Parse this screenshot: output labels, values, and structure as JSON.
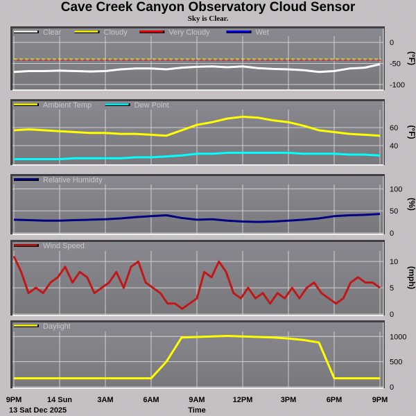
{
  "title": "Cave Creek Canyon Observatory Cloud Sensor",
  "subtitle": "Sky is Clear.",
  "x_axis": {
    "label": "Time",
    "date_label": "13 Sat Dec 2025",
    "ticks": [
      "9PM",
      "14 Sun",
      "3AM",
      "6AM",
      "9AM",
      "12PM",
      "3PM",
      "6PM",
      "9PM"
    ],
    "range_hours": [
      0,
      24
    ]
  },
  "chart_data": [
    {
      "type": "line",
      "id": "sky",
      "ylabel": "(°F)",
      "ylim": [
        -110,
        15
      ],
      "yticks": [
        0,
        -50,
        -100
      ],
      "legend": [
        {
          "name": "Clear",
          "color": "#ffffff"
        },
        {
          "name": "Cloudy",
          "color": "#ffff00"
        },
        {
          "name": "Very Cloudy",
          "color": "#ff0000"
        },
        {
          "name": "Wet",
          "color": "#0000ff"
        }
      ],
      "thresholds": [
        {
          "name": "Cloudy",
          "value": -41,
          "color": "#ffff00"
        },
        {
          "name": "Very Cloudy",
          "value": -41,
          "color": "#ff0000"
        }
      ],
      "series": [
        {
          "name": "Clear",
          "color": "#ffffff",
          "values": [
            -70,
            -68,
            -68,
            -67,
            -68,
            -69,
            -68,
            -64,
            -62,
            -62,
            -64,
            -60,
            -58,
            -57,
            -59,
            -57,
            -61,
            -63,
            -64,
            -66,
            -70,
            -68,
            -62,
            -60,
            -52
          ]
        }
      ]
    },
    {
      "type": "line",
      "id": "temp",
      "ylabel": "(°F)",
      "ylim": [
        20,
        80
      ],
      "yticks": [
        60,
        40
      ],
      "legend": [
        {
          "name": "Ambient Temp",
          "color": "#ffff00"
        },
        {
          "name": "Dew Point",
          "color": "#00ffff"
        }
      ],
      "series": [
        {
          "name": "Ambient Temp",
          "color": "#ffff00",
          "values": [
            57,
            58,
            57,
            56,
            55,
            54,
            54,
            53,
            53,
            52,
            51,
            57,
            63,
            66,
            70,
            72,
            71,
            68,
            66,
            62,
            57,
            55,
            53,
            52,
            51
          ]
        },
        {
          "name": "Dew Point",
          "color": "#00ffff",
          "values": [
            25,
            25,
            25,
            25,
            26,
            26,
            26,
            26,
            27,
            27,
            28,
            29,
            31,
            31,
            32,
            32,
            32,
            32,
            32,
            31,
            31,
            31,
            30,
            30,
            29
          ]
        }
      ]
    },
    {
      "type": "line",
      "id": "humidity",
      "ylabel": "(%)",
      "ylim": [
        0,
        110
      ],
      "yticks": [
        100,
        50,
        0
      ],
      "legend": [
        {
          "name": "Relative Humidity",
          "color": "#000080"
        }
      ],
      "series": [
        {
          "name": "Relative Humidity",
          "color": "#000080",
          "values": [
            30,
            29,
            28,
            28,
            29,
            30,
            31,
            33,
            36,
            38,
            40,
            34,
            30,
            31,
            28,
            26,
            25,
            26,
            28,
            30,
            33,
            38,
            40,
            41,
            43
          ]
        }
      ]
    },
    {
      "type": "line",
      "id": "wind",
      "ylabel": "(mph)",
      "ylim": [
        0,
        12
      ],
      "yticks": [
        10,
        5,
        0
      ],
      "legend": [
        {
          "name": "Wind Speed",
          "color": "#c01818"
        }
      ],
      "series": [
        {
          "name": "Wind Speed",
          "color": "#c01818",
          "values": [
            11,
            8,
            4,
            5,
            4,
            6,
            7,
            9,
            6,
            8,
            7,
            4,
            5,
            6,
            8,
            5,
            9,
            10,
            6,
            5,
            4,
            2,
            2,
            1,
            2,
            3,
            8,
            7,
            10,
            8,
            4,
            3,
            5,
            3,
            4,
            2,
            4,
            3,
            5,
            3,
            5,
            6,
            4,
            3,
            2,
            3,
            6,
            7,
            6,
            6,
            5
          ]
        }
      ]
    },
    {
      "type": "line",
      "id": "daylight",
      "ylabel": "",
      "ylim": [
        0,
        1100
      ],
      "yticks": [
        1000,
        500,
        0
      ],
      "legend": [
        {
          "name": "Daylight",
          "color": "#ffff00"
        }
      ],
      "series": [
        {
          "name": "Daylight",
          "color": "#ffff00",
          "values": [
            170,
            170,
            170,
            170,
            170,
            170,
            170,
            170,
            170,
            170,
            500,
            980,
            990,
            1000,
            1010,
            1000,
            990,
            980,
            960,
            930,
            880,
            170,
            170,
            170,
            170
          ]
        }
      ]
    }
  ]
}
